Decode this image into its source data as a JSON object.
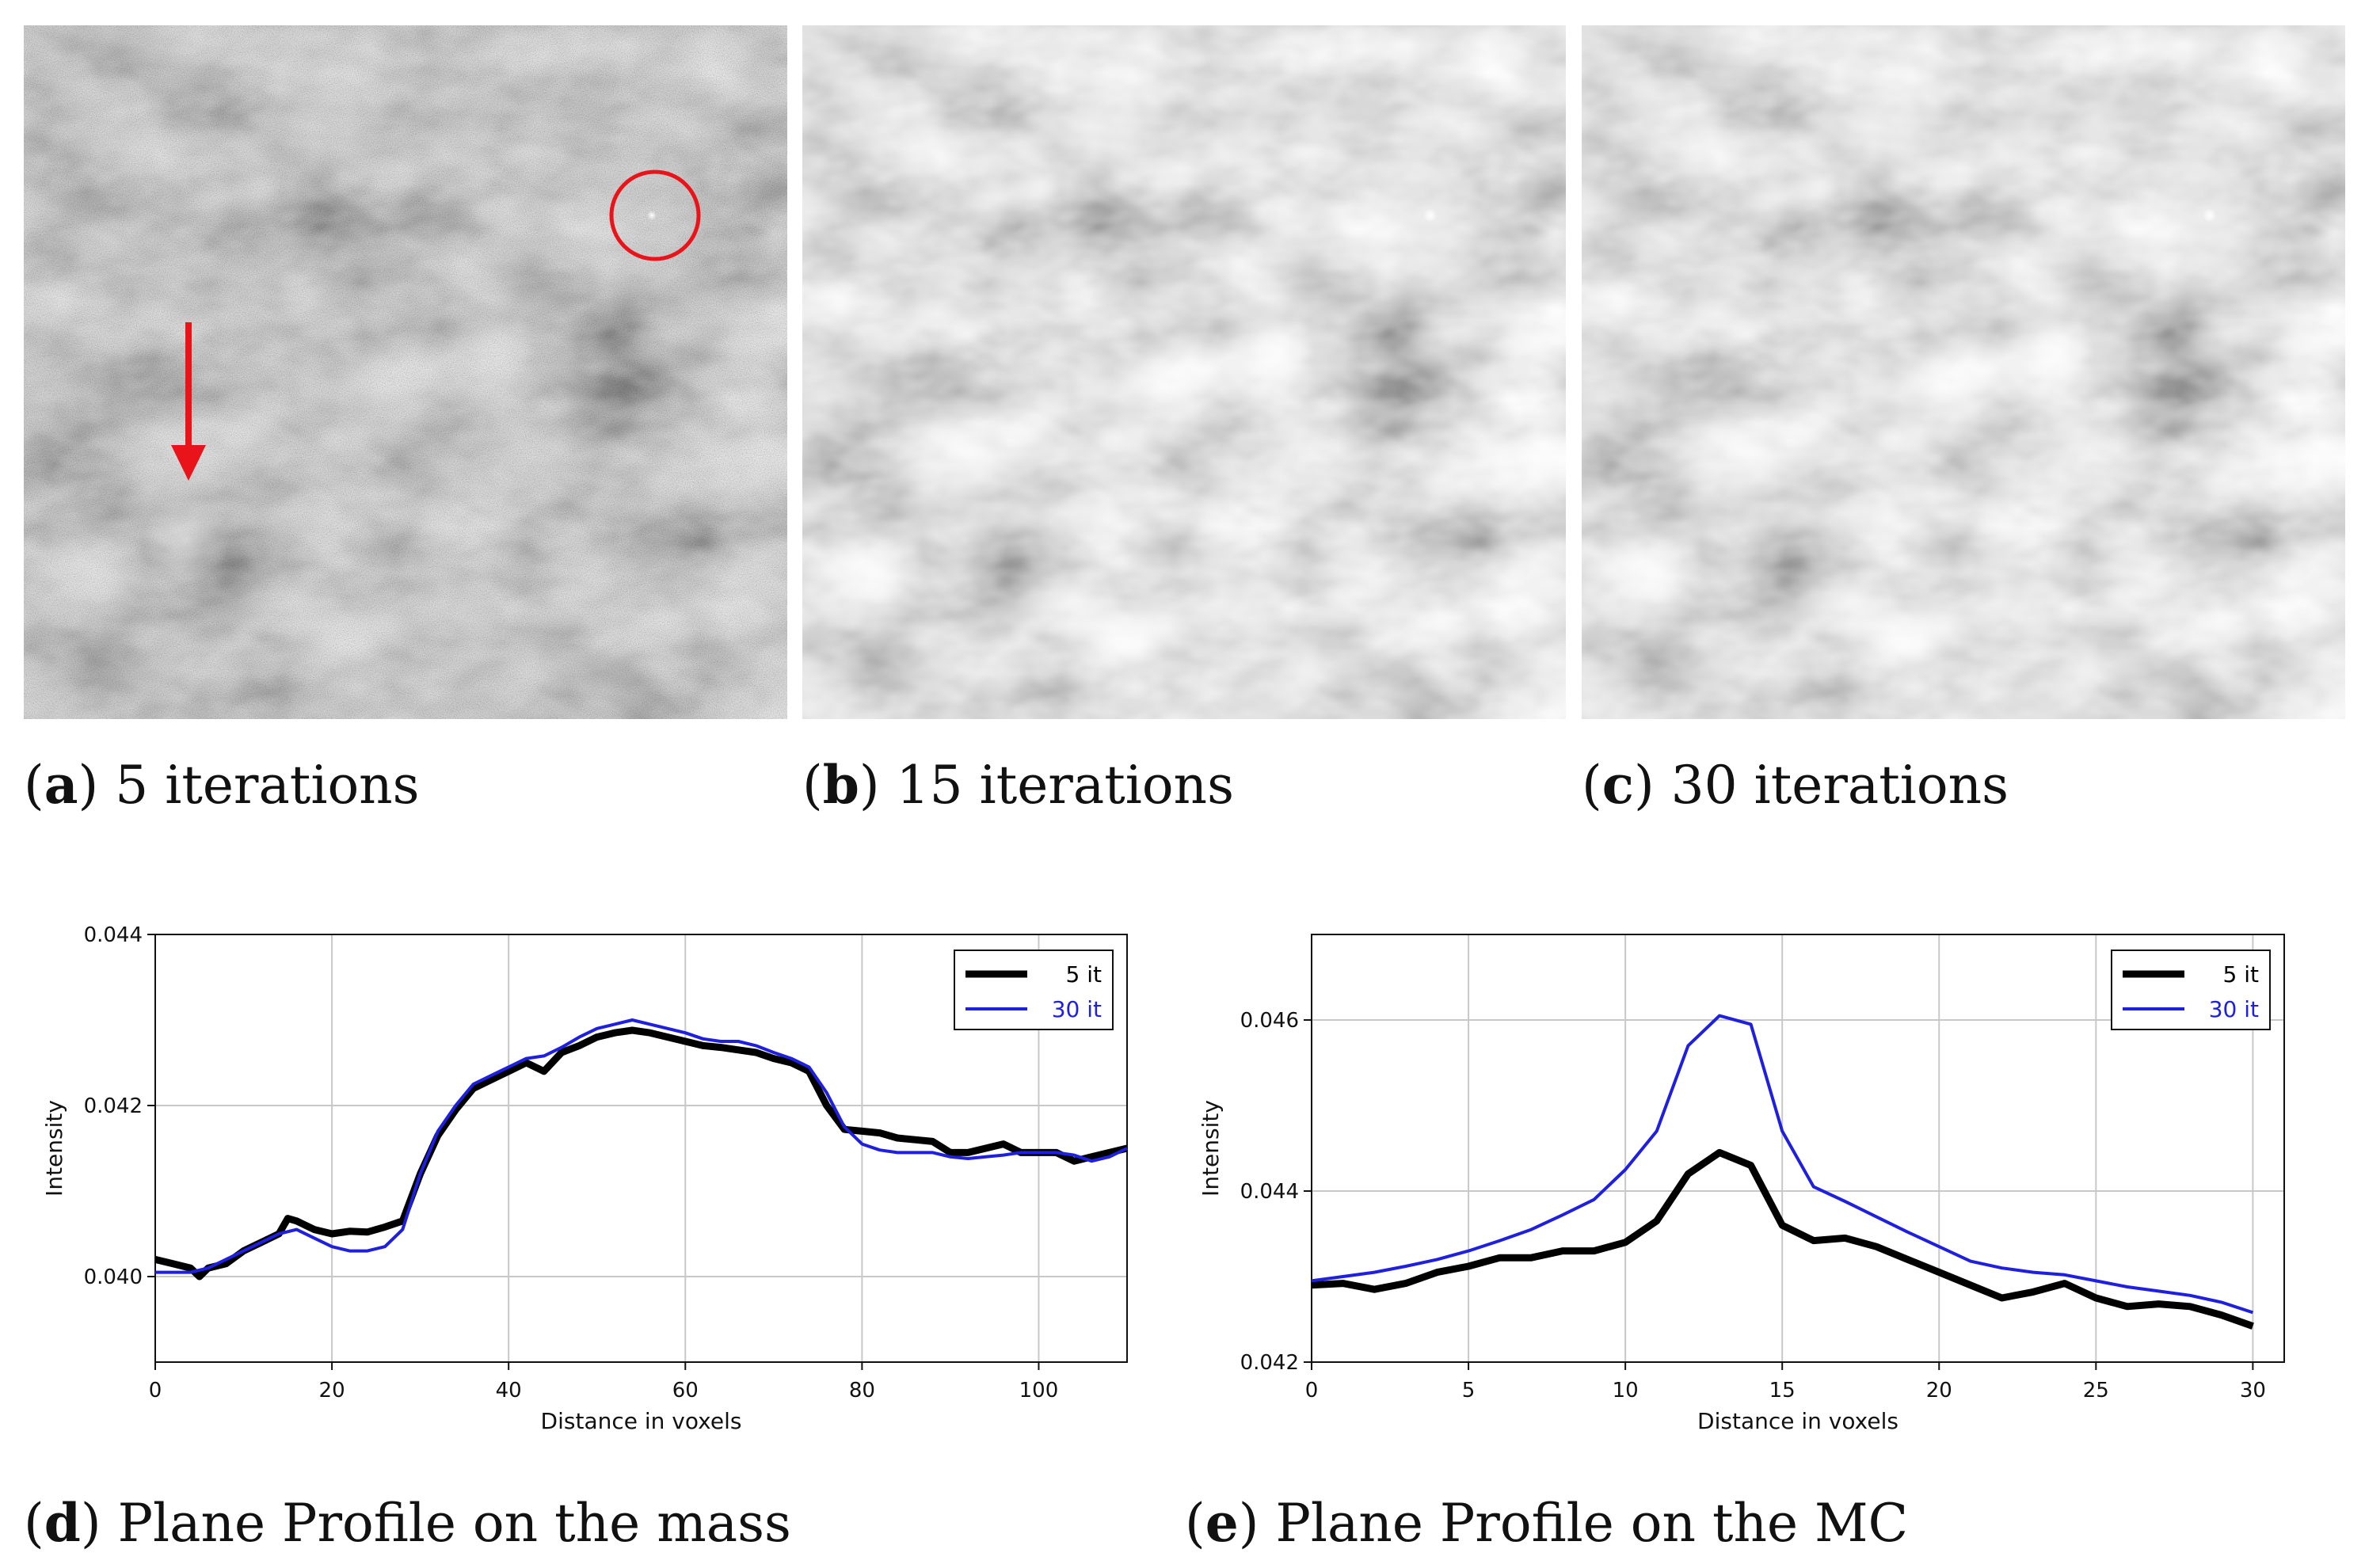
{
  "figure": {
    "captions": {
      "a": {
        "letter": "a",
        "text": "5 iterations"
      },
      "b": {
        "letter": "b",
        "text": "15 iterations"
      },
      "c": {
        "letter": "c",
        "text": "30 iterations"
      },
      "d": {
        "letter": "d",
        "text": "Plane Profile on the mass"
      },
      "e": {
        "letter": "e",
        "text": "Plane Profile on the MC"
      }
    },
    "colors": {
      "annotation": "#e8141a",
      "series1": "#000000",
      "series2": "#1f1fe0",
      "grid": "#c8c8c8"
    }
  },
  "chart_data": [
    {
      "id": "d",
      "type": "line",
      "title": "",
      "xlabel": "Distance in voxels",
      "ylabel": "Intensity",
      "xlim": [
        0,
        110
      ],
      "ylim": [
        0.039,
        0.044
      ],
      "xticks": [
        0,
        20,
        40,
        60,
        80,
        100
      ],
      "xtick_labels": [
        "0",
        "20",
        "40",
        "60",
        "80",
        "100"
      ],
      "yticks": [
        0.04,
        0.042,
        0.044
      ],
      "ytick_labels": [
        "0.040",
        "0.042",
        "0.044"
      ],
      "grid": true,
      "legend_position": "top-right",
      "series": [
        {
          "name": "5 it",
          "color": "#000000",
          "x": [
            0,
            2,
            4,
            5,
            6,
            8,
            10,
            12,
            14,
            15,
            16,
            18,
            20,
            22,
            24,
            26,
            28,
            30,
            32,
            34,
            36,
            38,
            40,
            42,
            44,
            46,
            48,
            50,
            52,
            54,
            56,
            58,
            60,
            62,
            64,
            66,
            68,
            70,
            72,
            74,
            76,
            78,
            80,
            82,
            84,
            86,
            88,
            90,
            92,
            94,
            96,
            98,
            100,
            102,
            104,
            106,
            108,
            110
          ],
          "y": [
            0.0402,
            0.04015,
            0.0401,
            0.04,
            0.0401,
            0.04015,
            0.0403,
            0.0404,
            0.0405,
            0.04068,
            0.04065,
            0.04055,
            0.0405,
            0.04053,
            0.04052,
            0.04058,
            0.04065,
            0.0412,
            0.04165,
            0.04195,
            0.0422,
            0.0423,
            0.0424,
            0.0425,
            0.0424,
            0.04262,
            0.0427,
            0.0428,
            0.04285,
            0.04288,
            0.04285,
            0.0428,
            0.04275,
            0.0427,
            0.04268,
            0.04265,
            0.04262,
            0.04255,
            0.0425,
            0.0424,
            0.042,
            0.04172,
            0.0417,
            0.04168,
            0.04162,
            0.0416,
            0.04158,
            0.04145,
            0.04145,
            0.0415,
            0.04155,
            0.04145,
            0.04145,
            0.04145,
            0.04135,
            0.0414,
            0.04145,
            0.0415
          ]
        },
        {
          "name": "30 it",
          "color": "#1f1fe0",
          "x": [
            0,
            2,
            4,
            6,
            8,
            10,
            12,
            14,
            16,
            18,
            20,
            22,
            24,
            26,
            28,
            30,
            32,
            34,
            36,
            38,
            40,
            42,
            44,
            46,
            48,
            50,
            52,
            54,
            56,
            58,
            60,
            62,
            64,
            66,
            68,
            70,
            72,
            74,
            76,
            78,
            80,
            82,
            84,
            86,
            88,
            90,
            92,
            94,
            96,
            98,
            100,
            102,
            104,
            106,
            108,
            110
          ],
          "y": [
            0.04005,
            0.04005,
            0.04005,
            0.0401,
            0.0402,
            0.0403,
            0.0404,
            0.0405,
            0.04055,
            0.04045,
            0.04035,
            0.0403,
            0.0403,
            0.04035,
            0.04055,
            0.0412,
            0.0417,
            0.042,
            0.04225,
            0.04235,
            0.04245,
            0.04255,
            0.04258,
            0.04268,
            0.0428,
            0.0429,
            0.04295,
            0.043,
            0.04295,
            0.0429,
            0.04285,
            0.04278,
            0.04275,
            0.04275,
            0.0427,
            0.04262,
            0.04255,
            0.04245,
            0.04215,
            0.04175,
            0.04155,
            0.04148,
            0.04145,
            0.04145,
            0.04145,
            0.0414,
            0.04138,
            0.0414,
            0.04142,
            0.04145,
            0.04145,
            0.04145,
            0.04142,
            0.04135,
            0.0414,
            0.0415
          ]
        }
      ]
    },
    {
      "id": "e",
      "type": "line",
      "title": "",
      "xlabel": "Distance in voxels",
      "ylabel": "Intensity",
      "xlim": [
        0,
        31
      ],
      "ylim": [
        0.042,
        0.047
      ],
      "xticks": [
        0,
        5,
        10,
        15,
        20,
        25,
        30
      ],
      "xtick_labels": [
        "0",
        "5",
        "10",
        "15",
        "20",
        "25",
        "30"
      ],
      "yticks": [
        0.042,
        0.044,
        0.046
      ],
      "ytick_labels": [
        "0.042",
        "0.044",
        "0.046"
      ],
      "grid": true,
      "legend_position": "top-right",
      "series": [
        {
          "name": "5 it",
          "color": "#000000",
          "x": [
            0,
            1,
            2,
            3,
            4,
            5,
            6,
            7,
            8,
            9,
            10,
            11,
            12,
            13,
            14,
            15,
            16,
            17,
            18,
            19,
            20,
            21,
            22,
            23,
            24,
            25,
            26,
            27,
            28,
            29,
            30
          ],
          "y": [
            0.0429,
            0.04292,
            0.04285,
            0.04292,
            0.04305,
            0.04312,
            0.04322,
            0.04322,
            0.0433,
            0.0433,
            0.0434,
            0.04365,
            0.0442,
            0.04445,
            0.0443,
            0.0436,
            0.04342,
            0.04345,
            0.04335,
            0.0432,
            0.04305,
            0.0429,
            0.04275,
            0.04282,
            0.04292,
            0.04275,
            0.04265,
            0.04268,
            0.04265,
            0.04255,
            0.04242
          ]
        },
        {
          "name": "30 it",
          "color": "#1f1fe0",
          "x": [
            0,
            1,
            2,
            3,
            4,
            5,
            6,
            7,
            8,
            9,
            10,
            11,
            12,
            13,
            14,
            15,
            16,
            17,
            18,
            19,
            20,
            21,
            22,
            23,
            24,
            25,
            26,
            27,
            28,
            29,
            30
          ],
          "y": [
            0.04295,
            0.043,
            0.04305,
            0.04312,
            0.0432,
            0.0433,
            0.04342,
            0.04355,
            0.04372,
            0.0439,
            0.04425,
            0.0447,
            0.0457,
            0.04605,
            0.04595,
            0.0447,
            0.04405,
            0.04388,
            0.0437,
            0.04352,
            0.04335,
            0.04318,
            0.0431,
            0.04305,
            0.04302,
            0.04295,
            0.04288,
            0.04283,
            0.04278,
            0.0427,
            0.04258
          ]
        }
      ]
    }
  ]
}
